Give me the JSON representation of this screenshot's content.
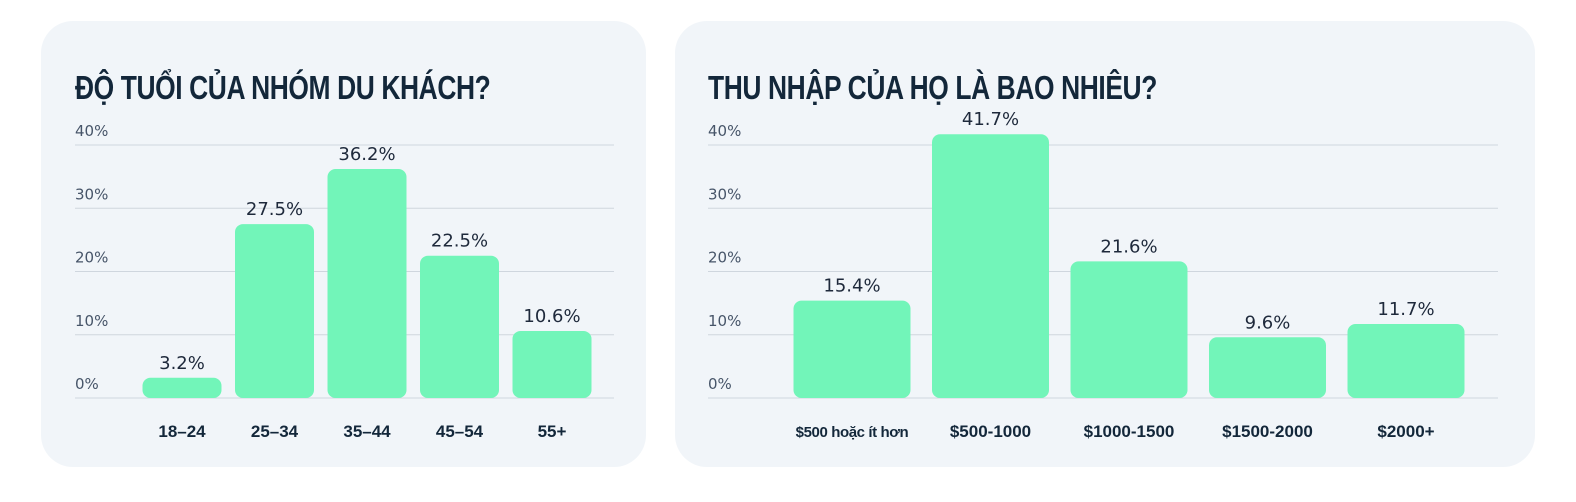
{
  "age_card": {
    "title": "ĐỘ TUỔI CỦA NHÓM DU KHÁCH?"
  },
  "income_card": {
    "title": "THU NHẬP CỦA HỌ LÀ BAO NHIÊU?"
  },
  "colors": {
    "bar": "#72f5b9",
    "grid": "#cfd6de",
    "card_bg": "#f1f5f9",
    "title": "#13273a"
  },
  "chart_data": [
    {
      "type": "bar",
      "title": "ĐỘ TUỔI CỦA NHÓM DU KHÁCH?",
      "categories": [
        "18–24",
        "25–34",
        "35–44",
        "45–54",
        "55+"
      ],
      "values": [
        3.2,
        27.5,
        36.2,
        22.5,
        10.6
      ],
      "value_labels": [
        "3.2%",
        "27.5%",
        "36.2%",
        "22.5%",
        "10.6%"
      ],
      "yticks": [
        "0%",
        "10%",
        "20%",
        "30%",
        "40%"
      ],
      "ylim": [
        0,
        40
      ],
      "grid": true,
      "legend": "none"
    },
    {
      "type": "bar",
      "title": "THU NHẬP CỦA HỌ LÀ BAO NHIÊU?",
      "categories": [
        "$500 hoặc ít hơn",
        "$500-1000",
        "$1000-1500",
        "$1500-2000",
        "$2000+"
      ],
      "values": [
        15.4,
        41.7,
        21.6,
        9.6,
        11.7
      ],
      "value_labels": [
        "15.4%",
        "41.7%",
        "21.6%",
        "9.6%",
        "11.7%"
      ],
      "yticks": [
        "0%",
        "10%",
        "20%",
        "30%",
        "40%"
      ],
      "ylim": [
        0,
        40
      ],
      "grid": true,
      "legend": "none"
    }
  ]
}
